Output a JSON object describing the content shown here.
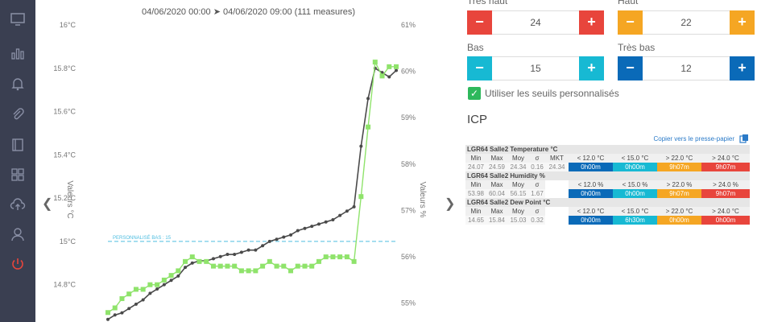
{
  "sidebar": {
    "icons": [
      "monitor-icon",
      "bar-chart-icon",
      "bell-icon",
      "paperclip-icon",
      "book-icon",
      "grid-icon",
      "cloud-upload-icon",
      "user-icon",
      "power-icon"
    ]
  },
  "chart": {
    "title": "04/06/2020 00:00 ➤ 04/06/2020 09:00 (111 measures)",
    "left_axis_label": "Valeurs °C",
    "right_axis_label": "Valeurs %",
    "threshold_label": "PERSONNALISÉ BAS : 15"
  },
  "chart_data": {
    "type": "line",
    "title": "04/06/2020 00:00 ➤ 04/06/2020 09:00 (111 measures)",
    "ylabel": "Valeurs °C",
    "y2label": "Valeurs %",
    "ylim": [
      14.65,
      16.0
    ],
    "y2lim": [
      54.7,
      61.0
    ],
    "y_ticks": [
      "16°C",
      "15.8°C",
      "15.6°C",
      "15.4°C",
      "15.2°C",
      "15°C",
      "14.8°C"
    ],
    "y2_ticks": [
      "61%",
      "60%",
      "59%",
      "58%",
      "57%",
      "56%",
      "55%"
    ],
    "threshold": 15,
    "colors": {
      "temperature": "#4a4a4a",
      "humidity": "#8fe36b",
      "threshold": "#4dbde0"
    },
    "series": [
      {
        "axis": "left",
        "values": [
          14.64,
          14.66,
          14.67,
          14.69,
          14.71,
          14.73,
          14.76,
          14.78,
          14.8,
          14.82,
          14.84,
          14.88,
          14.9,
          14.91,
          14.91,
          14.92,
          14.93,
          14.94,
          14.94,
          14.95,
          14.96,
          14.96,
          14.98,
          15.0,
          15.01,
          15.02,
          15.03,
          15.05,
          15.06,
          15.07,
          15.08,
          15.09,
          15.1,
          15.12,
          15.14,
          15.16,
          15.44,
          15.66,
          15.8,
          15.78,
          15.76,
          15.79
        ]
      },
      {
        "axis": "right",
        "values": [
          54.8,
          54.9,
          55.1,
          55.2,
          55.3,
          55.3,
          55.4,
          55.4,
          55.5,
          55.6,
          55.7,
          55.9,
          56.0,
          55.9,
          55.9,
          55.8,
          55.8,
          55.8,
          55.8,
          55.7,
          55.7,
          55.7,
          55.8,
          55.9,
          55.8,
          55.8,
          55.7,
          55.8,
          55.8,
          55.8,
          55.9,
          56.0,
          56.0,
          56.0,
          56.0,
          55.9,
          57.3,
          58.8,
          60.2,
          59.9,
          60.1,
          60.1
        ]
      }
    ]
  },
  "thresholds": {
    "tres_haut": {
      "label": "Très haut",
      "value": "24"
    },
    "haut": {
      "label": "Haut",
      "value": "22"
    },
    "bas": {
      "label": "Bas",
      "value": "15"
    },
    "tres_bas": {
      "label": "Très bas",
      "value": "12"
    },
    "minus": "−",
    "plus": "+",
    "check_mark": "✓",
    "use_custom_label": "Utiliser les seuils personnalisés"
  },
  "icp": {
    "title": "ICP",
    "copy_label": "Copier vers le presse-papier",
    "sections": [
      {
        "title": "LGR64 Salle2 Temperature °C",
        "headers": [
          "Min",
          "Max",
          "Moy",
          "σ",
          "MKT",
          "< 12.0 °C",
          "< 15.0 °C",
          "> 22.0 °C",
          "> 24.0 °C"
        ],
        "values": [
          "24.07",
          "24.59",
          "24.34",
          "0.16",
          "24.34",
          "0h00m",
          "0h00m",
          "9h07m",
          "9h07m"
        ]
      },
      {
        "title": "LGR64 Salle2 Humidity %",
        "headers": [
          "Min",
          "Max",
          "Moy",
          "σ",
          "",
          "< 12.0 %",
          "< 15.0 %",
          "> 22.0 %",
          "> 24.0 %"
        ],
        "values": [
          "53.98",
          "60.04",
          "56.15",
          "1.67",
          "",
          "0h00m",
          "0h00m",
          "9h07m",
          "9h07m"
        ]
      },
      {
        "title": "LGR64 Salle2 Dew Point °C",
        "headers": [
          "Min",
          "Max",
          "Moy",
          "σ",
          "",
          "< 12.0 °C",
          "< 15.0 °C",
          "> 22.0 °C",
          "> 24.0 °C"
        ],
        "values": [
          "14.65",
          "15.84",
          "15.03",
          "0.32",
          "",
          "0h00m",
          "6h30m",
          "0h00m",
          "0h00m"
        ]
      }
    ]
  }
}
